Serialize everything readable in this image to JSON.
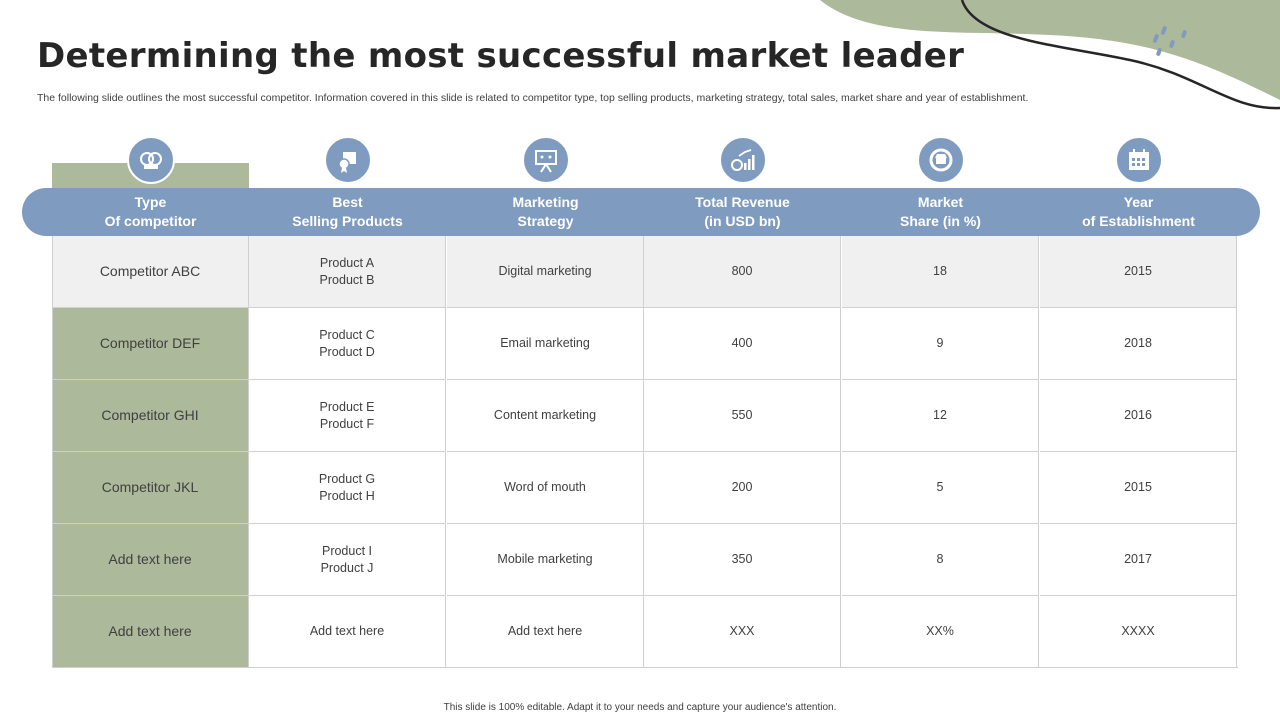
{
  "slide": {
    "title": "Determining the most successful market leader",
    "subtitle": "The following slide outlines the most successful competitor. Information covered in this slide is related to competitor type, top selling products, marketing strategy, total sales, market share and year of establishment.",
    "footer": "This slide is 100% editable. Adapt it to your needs and capture your audience's attention."
  },
  "colors": {
    "header_blue": "#7f9cc0",
    "accent_green": "#adb99b",
    "row_grey": "#f0f0f0"
  },
  "table": {
    "headers": [
      {
        "line1": "Type",
        "line2": "Of competitor",
        "icon": "boxing-gloves-icon"
      },
      {
        "line1": "Best",
        "line2": "Selling Products",
        "icon": "product-box-badge-icon"
      },
      {
        "line1": "Marketing",
        "line2": "Strategy",
        "icon": "presentation-board-icon"
      },
      {
        "line1": "Total Revenue",
        "line2": "(in USD bn)",
        "icon": "revenue-growth-chart-icon"
      },
      {
        "line1": "Market",
        "line2": "Share (in %)",
        "icon": "market-share-store-icon"
      },
      {
        "line1": "Year",
        "line2": "of Establishment",
        "icon": "calendar-icon"
      }
    ],
    "rows": [
      {
        "competitor": "Competitor  ABC",
        "product1": "Product A",
        "product2": "Product B",
        "strategy": "Digital marketing",
        "revenue": "800",
        "share": "18",
        "year": "2015"
      },
      {
        "competitor": "Competitor  DEF",
        "product1": "Product C",
        "product2": "Product D",
        "strategy": "Email marketing",
        "revenue": "400",
        "share": "9",
        "year": "2018"
      },
      {
        "competitor": "Competitor  GHI",
        "product1": "Product E",
        "product2": "Product F",
        "strategy": "Content marketing",
        "revenue": "550",
        "share": "12",
        "year": "2016"
      },
      {
        "competitor": "Competitor  JKL",
        "product1": "Product G",
        "product2": "Product H",
        "strategy": "Word of mouth",
        "revenue": "200",
        "share": "5",
        "year": "2015"
      },
      {
        "competitor": "Add text here",
        "product1": "Product I",
        "product2": "Product J",
        "strategy": "Mobile marketing",
        "revenue": "350",
        "share": "8",
        "year": "2017"
      },
      {
        "competitor": "Add text here",
        "product1": "Add text here",
        "product2": "",
        "strategy": "Add text here",
        "revenue": "XXX",
        "share": "XX%",
        "year": "XXXX"
      }
    ]
  }
}
